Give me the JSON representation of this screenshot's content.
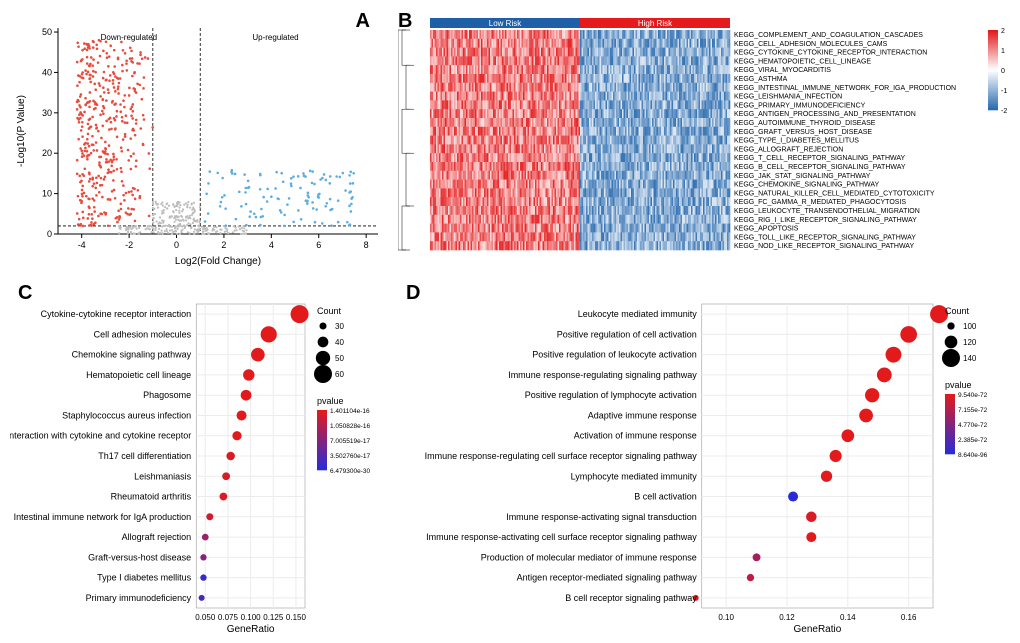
{
  "colors": {
    "down": "#e74c3c",
    "up": "#5dade2",
    "nonsig": "#bdbdbd",
    "axis": "#000000",
    "grid": "#e8e8e8",
    "grid_cd": "#ececec",
    "low_risk": "#1f5fa8",
    "high_risk": "#e41a1c",
    "hm_pos": "#e41a1c",
    "hm_neg": "#2b6cb0",
    "hm_mid": "#ffffff",
    "pval_low_c": "#2b2bd6",
    "pval_high_c": "#e31a1c",
    "pval_low_d": "#2b2bd6",
    "pval_high_d": "#e31a1c",
    "panel_bg_cd": "#ffffff"
  },
  "panelA": {
    "label": "A",
    "xlabel": "Log2(Fold Change)",
    "ylabel": "-Log10(P Value)",
    "x_ticks": [
      -4,
      -2,
      0,
      2,
      4,
      6,
      8
    ],
    "y_ticks": [
      0,
      10,
      20,
      30,
      40,
      50
    ],
    "xlim": [
      -5,
      8.5
    ],
    "ylim": [
      0,
      51
    ],
    "threshold_x": [
      -1,
      1
    ],
    "threshold_y": 2,
    "annot_down": "Down-regulated",
    "annot_up": "Up-regulated",
    "n_down": 420,
    "n_up": 120,
    "n_ns": 500
  },
  "panelB": {
    "label": "B",
    "group_labels": [
      "Low Risk",
      "High Risk"
    ],
    "colorbar_ticks": [
      2,
      1,
      0,
      -1,
      -2
    ],
    "pathways": [
      "KEGG_COMPLEMENT_AND_COAGULATION_CASCADES",
      "KEGG_CELL_ADHESION_MOLECULES_CAMS",
      "KEGG_CYTOKINE_CYTOKINE_RECEPTOR_INTERACTION",
      "KEGG_HEMATOPOIETIC_CELL_LINEAGE",
      "KEGG_VIRAL_MYOCARDITIS",
      "KEGG_ASTHMA",
      "KEGG_INTESTINAL_IMMUNE_NETWORK_FOR_IGA_PRODUCTION",
      "KEGG_LEISHMANIA_INFECTION",
      "KEGG_PRIMARY_IMMUNODEFICIENCY",
      "KEGG_ANTIGEN_PROCESSING_AND_PRESENTATION",
      "KEGG_AUTOIMMUNE_THYROID_DISEASE",
      "KEGG_GRAFT_VERSUS_HOST_DISEASE",
      "KEGG_TYPE_I_DIABETES_MELLITUS",
      "KEGG_ALLOGRAFT_REJECTION",
      "KEGG_T_CELL_RECEPTOR_SIGNALING_PATHWAY",
      "KEGG_B_CELL_RECEPTOR_SIGNALING_PATHWAY",
      "KEGG_JAK_STAT_SIGNALING_PATHWAY",
      "KEGG_CHEMOKINE_SIGNALING_PATHWAY",
      "KEGG_NATURAL_KILLER_CELL_MEDIATED_CYTOTOXICITY",
      "KEGG_FC_GAMMA_R_MEDIATED_PHAGOCYTOSIS",
      "KEGG_LEUKOCYTE_TRANSENDOTHELIAL_MIGRATION",
      "KEGG_RIG_I_LIKE_RECEPTOR_SIGNALING_PATHWAY",
      "KEGG_APOPTOSIS",
      "KEGG_TOLL_LIKE_RECEPTOR_SIGNALING_PATHWAY",
      "KEGG_NOD_LIKE_RECEPTOR_SIGNALING_PATHWAY"
    ],
    "n_cols": 200,
    "low_mean": 1.1,
    "high_mean": -1.1
  },
  "panelC": {
    "label": "C",
    "xlabel": "GeneRatio",
    "x_ticks": [
      0.05,
      0.075,
      0.1,
      0.125,
      0.15
    ],
    "count_legend": [
      30,
      40,
      50,
      60
    ],
    "pvalue_legend_title": "pvalue",
    "pvalue_legend_values": [
      "1.401104e-16",
      "1.050828e-16",
      "7.005519e-17",
      "3.502760e-17",
      "6.479300e-30"
    ],
    "count_legend_title": "Count",
    "terms": [
      {
        "name": "Cytokine-cytokine receptor interaction",
        "gr": 0.154,
        "count": 60,
        "pcol": 1.0
      },
      {
        "name": "Cell adhesion molecules",
        "gr": 0.12,
        "count": 55,
        "pcol": 1.0
      },
      {
        "name": "Chemokine signaling pathway",
        "gr": 0.108,
        "count": 48,
        "pcol": 1.0
      },
      {
        "name": "Hematopoietic cell lineage",
        "gr": 0.098,
        "count": 42,
        "pcol": 1.0
      },
      {
        "name": "Phagosome",
        "gr": 0.095,
        "count": 40,
        "pcol": 1.0
      },
      {
        "name": "Staphylococcus aureus infection",
        "gr": 0.09,
        "count": 38,
        "pcol": 1.0
      },
      {
        "name": "Viral protein interaction with cytokine and cytokine receptor",
        "gr": 0.085,
        "count": 36,
        "pcol": 1.0
      },
      {
        "name": "Th17 cell differentiation",
        "gr": 0.078,
        "count": 34,
        "pcol": 0.95
      },
      {
        "name": "Leishmaniasis",
        "gr": 0.073,
        "count": 32,
        "pcol": 0.95
      },
      {
        "name": "Rheumatoid arthritis",
        "gr": 0.07,
        "count": 32,
        "pcol": 0.95
      },
      {
        "name": "Intestinal immune network for IgA production",
        "gr": 0.055,
        "count": 30,
        "pcol": 0.9
      },
      {
        "name": "Allograft rejection",
        "gr": 0.05,
        "count": 29,
        "pcol": 0.6
      },
      {
        "name": "Graft-versus-host disease",
        "gr": 0.048,
        "count": 28,
        "pcol": 0.5
      },
      {
        "name": "Type I diabetes mellitus",
        "gr": 0.048,
        "count": 28,
        "pcol": 0.05
      },
      {
        "name": "Primary immunodeficiency",
        "gr": 0.046,
        "count": 27,
        "pcol": 0.15
      }
    ]
  },
  "panelD": {
    "label": "D",
    "xlabel": "GeneRatio",
    "x_ticks": [
      0.1,
      0.12,
      0.14,
      0.16
    ],
    "count_legend": [
      100,
      120,
      140
    ],
    "pvalue_legend_title": "pvalue",
    "pvalue_legend_values": [
      "9.540e-72",
      "7.155e-72",
      "4.770e-72",
      "2.385e-72",
      "8.640e-96"
    ],
    "count_legend_title": "Count",
    "terms": [
      {
        "name": "Leukocyte mediated immunity",
        "gr": 0.17,
        "count": 140,
        "pcol": 1.0
      },
      {
        "name": "Positive regulation of cell activation",
        "gr": 0.16,
        "count": 135,
        "pcol": 1.0
      },
      {
        "name": "Positive regulation of leukocyte activation",
        "gr": 0.155,
        "count": 132,
        "pcol": 1.0
      },
      {
        "name": "Immune response-regulating signaling pathway",
        "gr": 0.152,
        "count": 128,
        "pcol": 1.0
      },
      {
        "name": "Positive regulation of lymphocyte activation",
        "gr": 0.148,
        "count": 126,
        "pcol": 1.0
      },
      {
        "name": "Adaptive immune response",
        "gr": 0.146,
        "count": 124,
        "pcol": 1.0
      },
      {
        "name": "Activation of immune response",
        "gr": 0.14,
        "count": 120,
        "pcol": 1.0
      },
      {
        "name": "Immune response-regulating cell surface receptor signaling pathway",
        "gr": 0.136,
        "count": 118,
        "pcol": 1.0
      },
      {
        "name": "Lymphocyte mediated immunity",
        "gr": 0.133,
        "count": 115,
        "pcol": 1.0
      },
      {
        "name": "B cell activation",
        "gr": 0.122,
        "count": 110,
        "pcol": 0.0
      },
      {
        "name": "Immune response-activating signal transduction",
        "gr": 0.128,
        "count": 112,
        "pcol": 0.95
      },
      {
        "name": "Immune response-activating cell surface receptor signaling pathway",
        "gr": 0.128,
        "count": 110,
        "pcol": 1.0
      },
      {
        "name": "Production of molecular mediator of immune response",
        "gr": 0.11,
        "count": 102,
        "pcol": 0.65
      },
      {
        "name": "Antigen receptor-mediated signaling pathway",
        "gr": 0.108,
        "count": 100,
        "pcol": 0.8
      },
      {
        "name": "B cell receptor signaling pathway",
        "gr": 0.09,
        "count": 95,
        "pcol": 1.0
      }
    ]
  }
}
